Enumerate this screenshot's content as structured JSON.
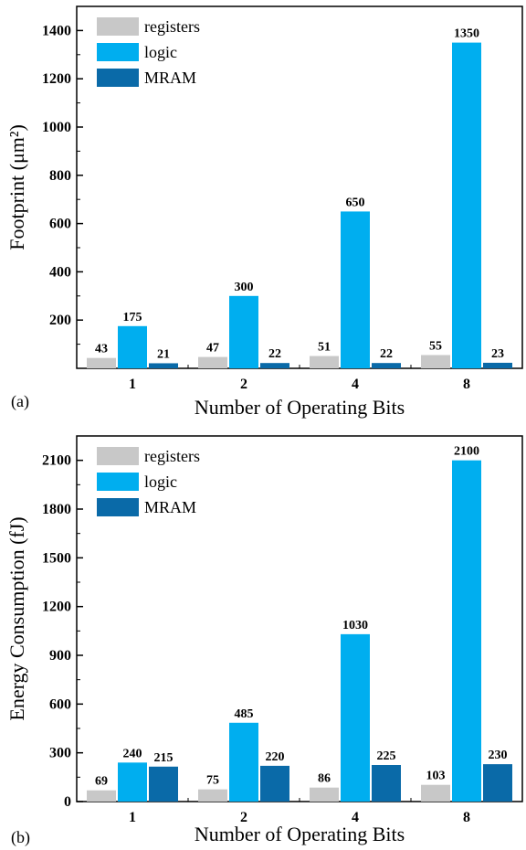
{
  "colors": {
    "registers": "#c8c8c8",
    "logic": "#00aeef",
    "MRAM": "#0a6aa8"
  },
  "chart_data": [
    {
      "type": "bar",
      "panel_label": "(a)",
      "categories": [
        "1",
        "2",
        "4",
        "8"
      ],
      "xlabel": "Number of Operating Bits",
      "ylabel": "Footprint (μm²)",
      "ylim": [
        0,
        1500
      ],
      "yticks": [
        200,
        400,
        600,
        800,
        1000,
        1200,
        1400
      ],
      "legend_position": "top-left",
      "series": [
        {
          "name": "registers",
          "values": [
            43,
            47,
            51,
            55
          ]
        },
        {
          "name": "logic",
          "values": [
            175,
            300,
            650,
            1350
          ]
        },
        {
          "name": "MRAM",
          "values": [
            21,
            22,
            22,
            23
          ]
        }
      ]
    },
    {
      "type": "bar",
      "panel_label": "(b)",
      "categories": [
        "1",
        "2",
        "4",
        "8"
      ],
      "xlabel": "Number of Operating Bits",
      "ylabel": "Energy Consumption (fJ)",
      "ylim": [
        0,
        2250
      ],
      "yticks": [
        0,
        300,
        600,
        900,
        1200,
        1500,
        1800,
        2100
      ],
      "legend_position": "top-left",
      "series": [
        {
          "name": "registers",
          "values": [
            69,
            75,
            86,
            103
          ]
        },
        {
          "name": "logic",
          "values": [
            240,
            485,
            1030,
            2100
          ]
        },
        {
          "name": "MRAM",
          "values": [
            215,
            220,
            225,
            230
          ]
        }
      ]
    }
  ]
}
